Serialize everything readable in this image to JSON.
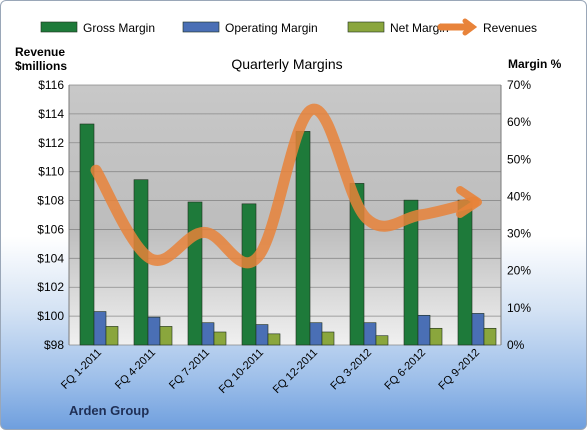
{
  "chart_data": {
    "type": "bar",
    "title": "Quarterly Margins",
    "categories": [
      "FQ 1-2011",
      "FQ 4-2011",
      "FQ 7-2011",
      "FQ 10-2011",
      "FQ 12-2011",
      "FQ 3-2012",
      "FQ 6-2012",
      "FQ 9-2012"
    ],
    "y_left": {
      "label_line1": "Revenue",
      "label_line2": "$millions",
      "range": [
        98,
        116
      ],
      "ticks": [
        "$98",
        "$100",
        "$102",
        "$104",
        "$106",
        "$108",
        "$110",
        "$112",
        "$114",
        "$116"
      ]
    },
    "y_right": {
      "label": "Margin %",
      "range": [
        0,
        70
      ],
      "ticks": [
        "0%",
        "10%",
        "20%",
        "30%",
        "40%",
        "50%",
        "60%",
        "70%"
      ]
    },
    "series": [
      {
        "name": "Gross Margin",
        "kind": "bar",
        "axis": "right",
        "color": "#1e7a3a",
        "values": [
          59.5,
          44.5,
          38.5,
          38.0,
          57.5,
          43.5,
          39.0,
          39.0
        ]
      },
      {
        "name": "Operating Margin",
        "kind": "bar",
        "axis": "right",
        "color": "#4a6fb5",
        "values": [
          9.0,
          7.5,
          6.0,
          5.5,
          6.0,
          6.0,
          8.0,
          8.5
        ]
      },
      {
        "name": "Net Margin",
        "kind": "bar",
        "axis": "right",
        "color": "#8aa63d",
        "values": [
          5.0,
          5.0,
          3.5,
          3.0,
          3.5,
          2.5,
          4.5,
          4.5
        ]
      },
      {
        "name": "Revenues",
        "kind": "line",
        "axis": "left",
        "color": "#e8833a",
        "values": [
          110.1,
          104.0,
          105.8,
          104.1,
          114.3,
          106.8,
          107.0,
          107.9
        ]
      }
    ],
    "legend_position": "top",
    "grid": true
  },
  "footer": {
    "company": "Arden Group"
  }
}
